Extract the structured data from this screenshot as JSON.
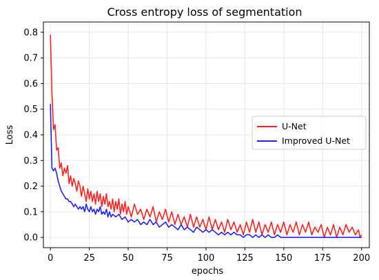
{
  "chart_data": {
    "type": "line",
    "title": "Cross entropy loss of segmentation",
    "xlabel": "epochs",
    "ylabel": "Loss",
    "xlim": [
      -4.5,
      205
    ],
    "ylim": [
      -0.04,
      0.84
    ],
    "xticks": [
      0,
      25,
      50,
      75,
      100,
      125,
      150,
      175,
      200
    ],
    "yticks": [
      0.0,
      0.1,
      0.2,
      0.3,
      0.4,
      0.5,
      0.6,
      0.7,
      0.8
    ],
    "grid": true,
    "legend_position": "center-right",
    "series": [
      {
        "name": "U-Net",
        "color": "#ff2020",
        "points": [
          [
            0,
            0.79
          ],
          [
            1,
            0.56
          ],
          [
            2,
            0.42
          ],
          [
            3,
            0.44
          ],
          [
            4,
            0.34
          ],
          [
            5,
            0.35
          ],
          [
            6,
            0.27
          ],
          [
            7,
            0.29
          ],
          [
            8,
            0.24
          ],
          [
            9,
            0.27
          ],
          [
            10,
            0.25
          ],
          [
            11,
            0.28
          ],
          [
            12,
            0.21
          ],
          [
            13,
            0.24
          ],
          [
            14,
            0.2
          ],
          [
            15,
            0.23
          ],
          [
            16,
            0.21
          ],
          [
            17,
            0.18
          ],
          [
            18,
            0.22
          ],
          [
            19,
            0.2
          ],
          [
            20,
            0.16
          ],
          [
            21,
            0.2
          ],
          [
            22,
            0.17
          ],
          [
            23,
            0.14
          ],
          [
            24,
            0.19
          ],
          [
            25,
            0.15
          ],
          [
            26,
            0.18
          ],
          [
            27,
            0.14
          ],
          [
            28,
            0.17
          ],
          [
            29,
            0.13
          ],
          [
            30,
            0.18
          ],
          [
            31,
            0.14
          ],
          [
            32,
            0.17
          ],
          [
            33,
            0.12
          ],
          [
            34,
            0.16
          ],
          [
            35,
            0.13
          ],
          [
            36,
            0.17
          ],
          [
            37,
            0.12
          ],
          [
            38,
            0.14
          ],
          [
            39,
            0.11
          ],
          [
            40,
            0.15
          ],
          [
            41,
            0.1
          ],
          [
            42,
            0.14
          ],
          [
            43,
            0.11
          ],
          [
            44,
            0.15
          ],
          [
            45,
            0.09
          ],
          [
            46,
            0.13
          ],
          [
            47,
            0.1
          ],
          [
            48,
            0.14
          ],
          [
            49,
            0.09
          ],
          [
            50,
            0.12
          ],
          [
            52,
            0.08
          ],
          [
            54,
            0.13
          ],
          [
            56,
            0.09
          ],
          [
            58,
            0.11
          ],
          [
            60,
            0.07
          ],
          [
            62,
            0.11
          ],
          [
            64,
            0.08
          ],
          [
            66,
            0.12
          ],
          [
            68,
            0.06
          ],
          [
            70,
            0.1
          ],
          [
            72,
            0.07
          ],
          [
            74,
            0.11
          ],
          [
            76,
            0.06
          ],
          [
            78,
            0.1
          ],
          [
            80,
            0.05
          ],
          [
            82,
            0.09
          ],
          [
            84,
            0.05
          ],
          [
            86,
            0.08
          ],
          [
            88,
            0.04
          ],
          [
            90,
            0.09
          ],
          [
            92,
            0.04
          ],
          [
            94,
            0.08
          ],
          [
            96,
            0.04
          ],
          [
            98,
            0.07
          ],
          [
            100,
            0.03
          ],
          [
            102,
            0.08
          ],
          [
            104,
            0.03
          ],
          [
            106,
            0.07
          ],
          [
            108,
            0.03
          ],
          [
            110,
            0.06
          ],
          [
            112,
            0.02
          ],
          [
            114,
            0.07
          ],
          [
            116,
            0.03
          ],
          [
            118,
            0.06
          ],
          [
            120,
            0.02
          ],
          [
            122,
            0.05
          ],
          [
            124,
            0.01
          ],
          [
            126,
            0.06
          ],
          [
            128,
            0.02
          ],
          [
            130,
            0.07
          ],
          [
            132,
            0.02
          ],
          [
            134,
            0.06
          ],
          [
            136,
            0.01
          ],
          [
            138,
            0.05
          ],
          [
            140,
            0.02
          ],
          [
            142,
            0.06
          ],
          [
            144,
            0.01
          ],
          [
            146,
            0.05
          ],
          [
            148,
            0.02
          ],
          [
            150,
            0.06
          ],
          [
            152,
            0.01
          ],
          [
            154,
            0.05
          ],
          [
            156,
            0.02
          ],
          [
            158,
            0.06
          ],
          [
            160,
            0.01
          ],
          [
            162,
            0.05
          ],
          [
            164,
            0.02
          ],
          [
            166,
            0.06
          ],
          [
            168,
            0.01
          ],
          [
            170,
            0.04
          ],
          [
            172,
            0.02
          ],
          [
            174,
            0.05
          ],
          [
            176,
            0.0
          ],
          [
            178,
            0.04
          ],
          [
            180,
            0.01
          ],
          [
            182,
            0.05
          ],
          [
            184,
            0.0
          ],
          [
            186,
            0.04
          ],
          [
            188,
            0.01
          ],
          [
            190,
            0.05
          ],
          [
            192,
            0.02
          ],
          [
            194,
            0.04
          ],
          [
            196,
            0.01
          ],
          [
            198,
            0.03
          ],
          [
            199,
            0.0
          ],
          [
            200,
            0.01
          ]
        ]
      },
      {
        "name": "Improved U-Net",
        "color": "#2020ff",
        "points": [
          [
            0,
            0.52
          ],
          [
            1,
            0.27
          ],
          [
            2,
            0.26
          ],
          [
            3,
            0.27
          ],
          [
            4,
            0.25
          ],
          [
            5,
            0.22
          ],
          [
            6,
            0.2
          ],
          [
            7,
            0.18
          ],
          [
            8,
            0.17
          ],
          [
            9,
            0.16
          ],
          [
            10,
            0.15
          ],
          [
            11,
            0.15
          ],
          [
            12,
            0.14
          ],
          [
            13,
            0.14
          ],
          [
            14,
            0.13
          ],
          [
            15,
            0.12
          ],
          [
            16,
            0.13
          ],
          [
            17,
            0.12
          ],
          [
            18,
            0.11
          ],
          [
            19,
            0.12
          ],
          [
            20,
            0.11
          ],
          [
            21,
            0.12
          ],
          [
            22,
            0.1
          ],
          [
            23,
            0.13
          ],
          [
            24,
            0.11
          ],
          [
            25,
            0.1
          ],
          [
            26,
            0.12
          ],
          [
            27,
            0.1
          ],
          [
            28,
            0.11
          ],
          [
            29,
            0.09
          ],
          [
            30,
            0.11
          ],
          [
            31,
            0.1
          ],
          [
            32,
            0.12
          ],
          [
            33,
            0.09
          ],
          [
            34,
            0.1
          ],
          [
            35,
            0.09
          ],
          [
            36,
            0.11
          ],
          [
            37,
            0.08
          ],
          [
            38,
            0.1
          ],
          [
            39,
            0.08
          ],
          [
            40,
            0.09
          ],
          [
            42,
            0.08
          ],
          [
            44,
            0.09
          ],
          [
            46,
            0.07
          ],
          [
            48,
            0.08
          ],
          [
            50,
            0.06
          ],
          [
            52,
            0.07
          ],
          [
            54,
            0.06
          ],
          [
            56,
            0.07
          ],
          [
            58,
            0.05
          ],
          [
            60,
            0.06
          ],
          [
            62,
            0.05
          ],
          [
            64,
            0.07
          ],
          [
            66,
            0.05
          ],
          [
            68,
            0.06
          ],
          [
            70,
            0.04
          ],
          [
            72,
            0.05
          ],
          [
            74,
            0.06
          ],
          [
            76,
            0.04
          ],
          [
            78,
            0.05
          ],
          [
            80,
            0.04
          ],
          [
            82,
            0.03
          ],
          [
            84,
            0.05
          ],
          [
            86,
            0.03
          ],
          [
            88,
            0.04
          ],
          [
            90,
            0.03
          ],
          [
            92,
            0.02
          ],
          [
            94,
            0.04
          ],
          [
            96,
            0.03
          ],
          [
            98,
            0.02
          ],
          [
            100,
            0.03
          ],
          [
            102,
            0.02
          ],
          [
            104,
            0.03
          ],
          [
            106,
            0.02
          ],
          [
            108,
            0.01
          ],
          [
            110,
            0.02
          ],
          [
            112,
            0.01
          ],
          [
            114,
            0.02
          ],
          [
            116,
            0.01
          ],
          [
            118,
            0.02
          ],
          [
            120,
            0.01
          ],
          [
            122,
            0.01
          ],
          [
            124,
            0.0
          ],
          [
            126,
            0.01
          ],
          [
            128,
            0.01
          ],
          [
            130,
            0.0
          ],
          [
            132,
            0.01
          ],
          [
            134,
            0.0
          ],
          [
            136,
            0.01
          ],
          [
            138,
            0.0
          ],
          [
            140,
            0.01
          ],
          [
            142,
            0.0
          ],
          [
            144,
            0.0
          ],
          [
            146,
            0.01
          ],
          [
            148,
            0.0
          ],
          [
            150,
            0.0
          ],
          [
            155,
            0.0
          ],
          [
            160,
            0.0
          ],
          [
            165,
            0.0
          ],
          [
            170,
            0.0
          ],
          [
            175,
            0.0
          ],
          [
            180,
            0.0
          ],
          [
            185,
            0.0
          ],
          [
            190,
            0.0
          ],
          [
            195,
            0.0
          ],
          [
            200,
            0.0
          ]
        ]
      }
    ]
  }
}
